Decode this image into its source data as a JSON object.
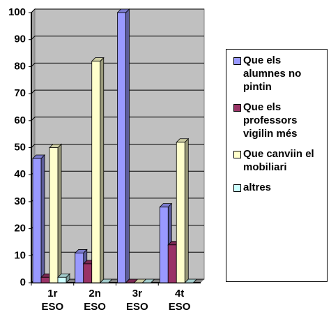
{
  "chart_data": {
    "type": "bar3d",
    "categories": [
      "1r ESO",
      "2n ESO",
      "3r ESO",
      "4t ESO"
    ],
    "series": [
      {
        "name": "Que els alumnes no pintin",
        "color": "#9999ff",
        "values": [
          46,
          11,
          100,
          28
        ]
      },
      {
        "name": "Que els professors vigilin més",
        "color": "#993366",
        "values": [
          2,
          7,
          0,
          14
        ]
      },
      {
        "name": "Que canviin el mobiliari",
        "color": "#ffffcc",
        "values": [
          50,
          82,
          0,
          52
        ]
      },
      {
        "name": "altres",
        "color": "#ccffff",
        "values": [
          2,
          0,
          0,
          0
        ]
      }
    ],
    "ylim": [
      0,
      100
    ],
    "yticks": [
      0,
      10,
      20,
      30,
      40,
      50,
      60,
      70,
      80,
      90,
      100
    ],
    "grid": true
  }
}
